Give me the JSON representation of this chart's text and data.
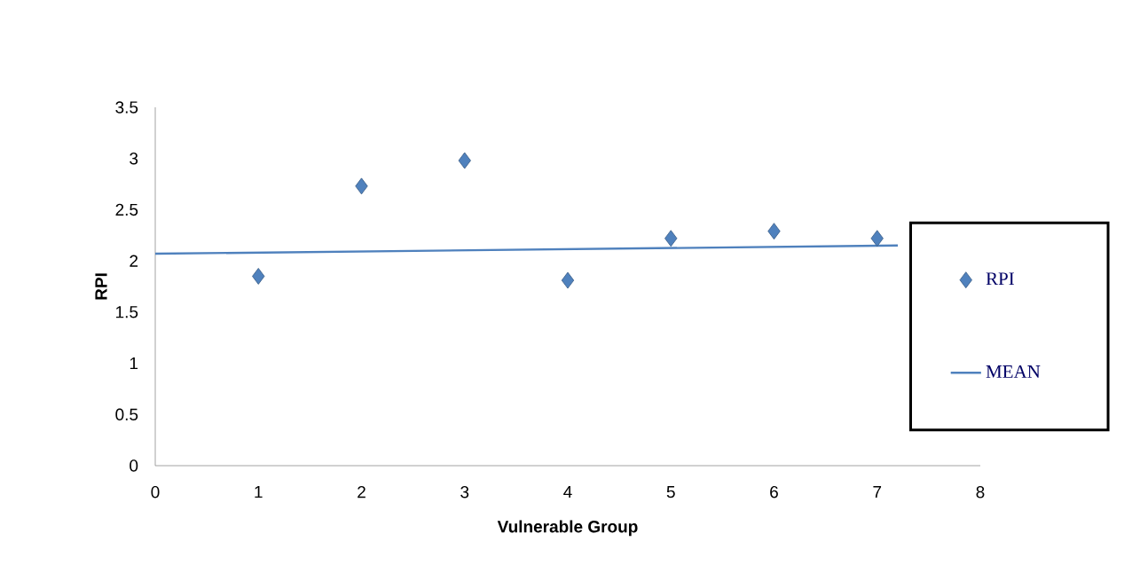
{
  "chart_data": {
    "type": "scatter",
    "xlabel": "Vulnerable Group",
    "ylabel": "RPI",
    "x": [
      1,
      2,
      3,
      4,
      5,
      6,
      7
    ],
    "series": [
      {
        "name": "RPI",
        "color": "#4f81bd",
        "marker": "diamond",
        "values": [
          1.85,
          2.73,
          2.98,
          1.81,
          2.22,
          2.29,
          2.22
        ]
      },
      {
        "name": "MEAN",
        "type": "line",
        "color": "#4f81bd",
        "x": [
          0,
          7.2
        ],
        "values": [
          2.07,
          2.15
        ]
      }
    ],
    "xlim": [
      0,
      8
    ],
    "ylim": [
      0,
      3.5
    ],
    "xticks": [
      0,
      1,
      2,
      3,
      4,
      5,
      6,
      7,
      8
    ],
    "yticks": [
      0,
      0.5,
      1,
      1.5,
      2,
      2.5,
      3,
      3.5
    ],
    "legend": "right"
  }
}
